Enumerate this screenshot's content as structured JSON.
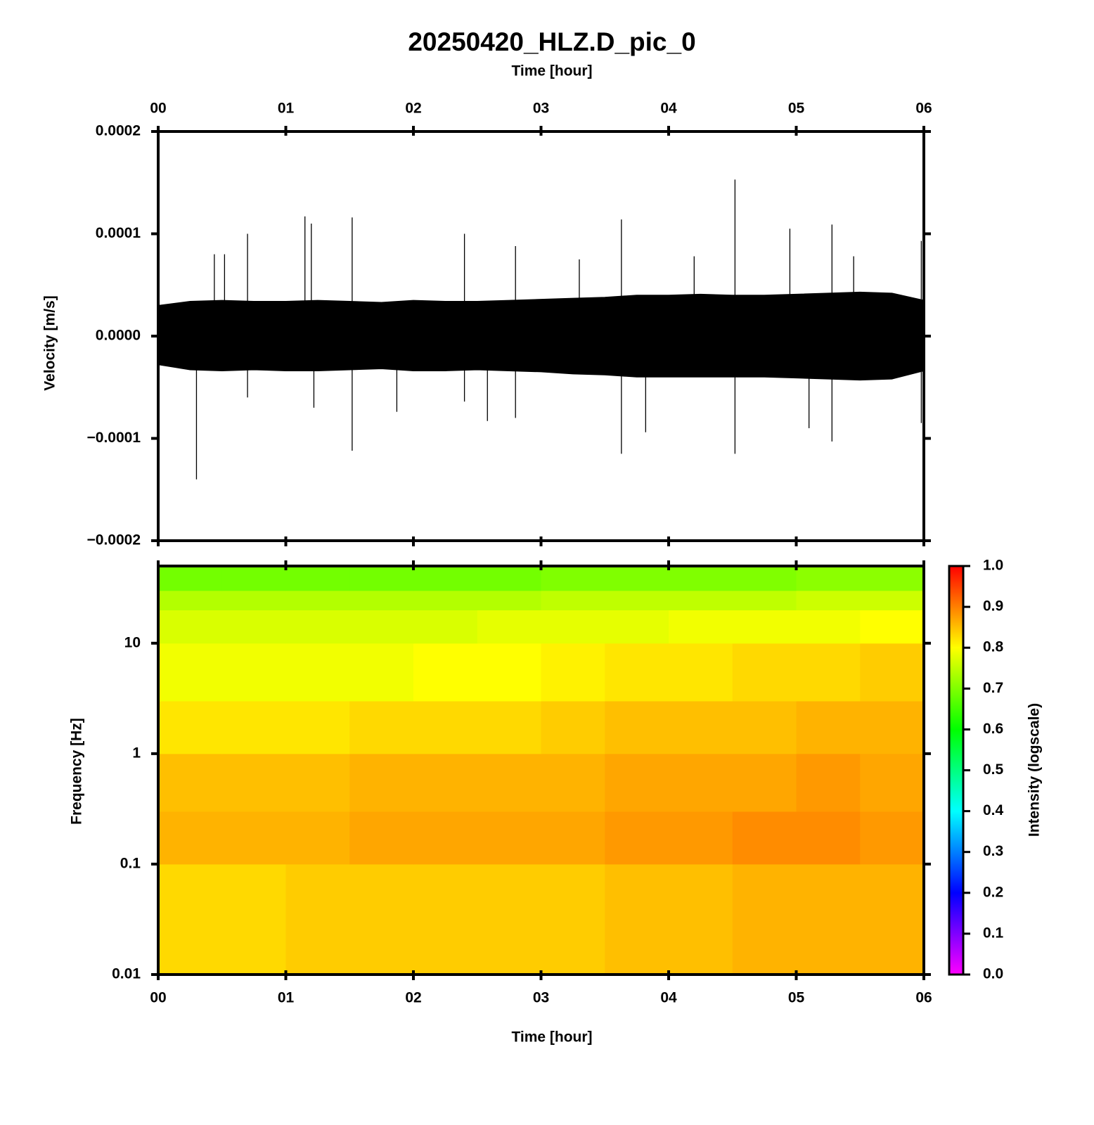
{
  "chart_data": [
    {
      "type": "waveform",
      "title": "20250420_HLZ.D_pic_0",
      "xlabel": "Time [hour]",
      "ylabel": "Velocity [m/s]",
      "xlim": [
        0,
        6
      ],
      "ylim": [
        -0.0002,
        0.0002
      ],
      "xticks": [
        {
          "value": 0,
          "label": "00"
        },
        {
          "value": 1,
          "label": "01"
        },
        {
          "value": 2,
          "label": "02"
        },
        {
          "value": 3,
          "label": "03"
        },
        {
          "value": 4,
          "label": "04"
        },
        {
          "value": 5,
          "label": "05"
        },
        {
          "value": 6,
          "label": "06"
        }
      ],
      "yticks": [
        {
          "value": -0.0002,
          "label": "−0.0002"
        },
        {
          "value": -0.0001,
          "label": "−0.0001"
        },
        {
          "value": 0,
          "label": "0.0000"
        },
        0.0001,
        0.0002
      ],
      "x": [
        0,
        0.25,
        0.5,
        0.75,
        1,
        1.25,
        1.5,
        1.75,
        2,
        2.25,
        2.5,
        2.75,
        3,
        3.25,
        3.5,
        3.75,
        4,
        4.25,
        4.5,
        4.75,
        5,
        5.25,
        5.5,
        5.75,
        6
      ],
      "series": [
        {
          "color": "#000000",
          "values": [
            3e-05,
            3.4e-05,
            3.5e-05,
            3.4e-05,
            3.4e-05,
            3.5e-05,
            3.4e-05,
            3.3e-05,
            3.5e-05,
            3.4e-05,
            3.4e-05,
            3.5e-05,
            3.6e-05,
            3.7e-05,
            3.8e-05,
            4e-05,
            4e-05,
            4.1e-05,
            4e-05,
            4e-05,
            4.1e-05,
            4.2e-05,
            4.3e-05,
            4.2e-05,
            3.5e-05
          ]
        },
        {
          "color": "#000000",
          "values": [
            -2.8e-05,
            -3.3e-05,
            -3.4e-05,
            -3.3e-05,
            -3.4e-05,
            -3.4e-05,
            -3.3e-05,
            -3.2e-05,
            -3.4e-05,
            -3.4e-05,
            -3.3e-05,
            -3.4e-05,
            -3.5e-05,
            -3.7e-05,
            -3.8e-05,
            -4e-05,
            -4e-05,
            -4e-05,
            -4e-05,
            -4e-05,
            -4.1e-05,
            -4.2e-05,
            -4.3e-05,
            -4.2e-05,
            -3.4e-05
          ]
        },
        {
          "color": "#000000",
          "x": [
            0.3,
            0.44,
            0.52,
            0.7,
            0.7,
            1.15,
            1.2,
            1.22,
            1.52,
            1.52,
            1.87,
            2.4,
            2.4,
            2.58,
            2.8,
            2.8,
            3.3,
            3.63,
            3.63,
            3.82,
            4.2,
            4.52,
            4.52,
            4.95,
            5.1,
            5.28,
            5.28,
            5.45,
            5.98,
            5.98
          ],
          "values": [
            -0.00014,
            8e-05,
            8e-05,
            0.0001,
            -6e-05,
            0.000117,
            0.00011,
            -7e-05,
            0.000116,
            -0.000112,
            -7.4e-05,
            0.0001,
            -6.4e-05,
            -8.3e-05,
            8.8e-05,
            -8e-05,
            7.5e-05,
            0.000114,
            -0.000115,
            -9.4e-05,
            7.8e-05,
            0.000153,
            -0.000115,
            0.000105,
            -9e-05,
            0.000109,
            -0.000103,
            7.8e-05,
            9.3e-05,
            -8.5e-05
          ]
        }
      ]
    },
    {
      "type": "heatmap",
      "xlabel": "Time [hour]",
      "ylabel": "Frequency [Hz]",
      "colorbar_label": "Intensity (logscale)",
      "xlim": [
        0,
        6
      ],
      "ylim": [
        0.01,
        50
      ],
      "log_y": true,
      "xticks": [
        {
          "value": 0,
          "label": "00"
        },
        {
          "value": 1,
          "label": "01"
        },
        {
          "value": 2,
          "label": "02"
        },
        {
          "value": 3,
          "label": "03"
        },
        {
          "value": 4,
          "label": "04"
        },
        {
          "value": 5,
          "label": "05"
        },
        {
          "value": 6,
          "label": "06"
        }
      ],
      "yticks": [
        0.01,
        0.1,
        1,
        10
      ],
      "xbins": [
        0,
        0.5,
        1,
        1.5,
        2,
        2.5,
        3,
        3.5,
        4,
        4.5,
        5,
        5.5,
        6
      ],
      "ybins": [
        0.01,
        0.1,
        0.3,
        1,
        3,
        10,
        20,
        30,
        50
      ],
      "values": [
        [
          0.83,
          0.83,
          0.84,
          0.84,
          0.84,
          0.84,
          0.84,
          0.85,
          0.85,
          0.86,
          0.86,
          0.86
        ],
        [
          0.86,
          0.86,
          0.86,
          0.87,
          0.87,
          0.87,
          0.87,
          0.88,
          0.88,
          0.89,
          0.89,
          0.88
        ],
        [
          0.85,
          0.85,
          0.85,
          0.86,
          0.86,
          0.86,
          0.86,
          0.87,
          0.87,
          0.87,
          0.88,
          0.87
        ],
        [
          0.82,
          0.82,
          0.82,
          0.83,
          0.83,
          0.83,
          0.84,
          0.85,
          0.85,
          0.85,
          0.86,
          0.86
        ],
        [
          0.79,
          0.79,
          0.79,
          0.79,
          0.8,
          0.8,
          0.81,
          0.82,
          0.82,
          0.83,
          0.83,
          0.84
        ],
        [
          0.77,
          0.77,
          0.77,
          0.77,
          0.77,
          0.78,
          0.78,
          0.78,
          0.79,
          0.79,
          0.79,
          0.8
        ],
        [
          0.74,
          0.74,
          0.74,
          0.74,
          0.74,
          0.74,
          0.75,
          0.75,
          0.75,
          0.75,
          0.76,
          0.76
        ],
        [
          0.69,
          0.69,
          0.69,
          0.69,
          0.69,
          0.69,
          0.7,
          0.7,
          0.7,
          0.7,
          0.71,
          0.71
        ]
      ],
      "clim": [
        0,
        1
      ],
      "cticks": [
        {
          "value": 0,
          "label": "0.0"
        },
        0.1,
        0.2,
        0.3,
        0.4,
        0.5,
        0.6,
        0.7,
        0.8,
        0.9,
        {
          "value": 1,
          "label": "1.0"
        }
      ],
      "colors": [
        "#ff00ff",
        "#0000ff",
        "#00ffff",
        "#00ff00",
        "#ffff00",
        "#ff0000"
      ]
    }
  ]
}
